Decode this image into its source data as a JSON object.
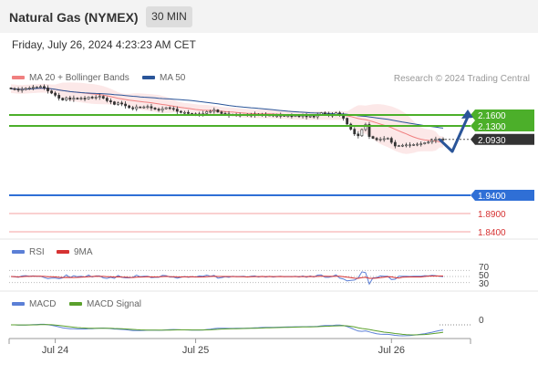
{
  "header": {
    "title": "Natural Gas (NYMEX)",
    "timeframe": "30 MIN"
  },
  "datetime": "Friday, July 26, 2024 4:23:23 AM CET",
  "credit": "Research © 2024 Trading Central",
  "colors": {
    "ma20": "#f08080",
    "ma50": "#2a5599",
    "resistance": "#4caf2a",
    "support": "#2f6fd6",
    "support_minor": "#f4a0a0",
    "arrow": "#2a5599",
    "rsi": "#5b7fd6",
    "rsi_ma": "#d63232",
    "macd": "#5b7fd6",
    "macd_signal": "#5aa02c",
    "price_tag": "#333333"
  },
  "chart_data": [
    {
      "type": "candlestick",
      "legend": [
        {
          "name": "MA 20 + Bollinger Bands",
          "color": "#f08080"
        },
        {
          "name": "MA 50",
          "color": "#2a5599"
        }
      ],
      "x_tick_labels": [
        "Jul 24",
        "Jul 25",
        "Jul 26"
      ],
      "ylim": [
        1.82,
        2.26
      ],
      "levels": [
        {
          "value": 2.16,
          "label": "2.1600",
          "kind": "resistance"
        },
        {
          "value": 2.13,
          "label": "2.1300",
          "kind": "resistance"
        },
        {
          "value": 2.093,
          "label": "2.0930",
          "kind": "last-price"
        },
        {
          "value": 1.94,
          "label": "1.9400",
          "kind": "pivot"
        },
        {
          "value": 1.89,
          "label": "1.8900",
          "kind": "support"
        },
        {
          "value": 1.84,
          "label": "1.8400",
          "kind": "support"
        }
      ],
      "close": [
        2.232,
        2.231,
        2.228,
        2.23,
        2.233,
        2.234,
        2.236,
        2.237,
        2.238,
        2.234,
        2.226,
        2.22,
        2.214,
        2.206,
        2.201,
        2.207,
        2.203,
        2.206,
        2.205,
        2.206,
        2.204,
        2.209,
        2.207,
        2.209,
        2.211,
        2.206,
        2.199,
        2.196,
        2.189,
        2.193,
        2.19,
        2.185,
        2.18,
        2.177,
        2.182,
        2.181,
        2.182,
        2.183,
        2.179,
        2.176,
        2.173,
        2.177,
        2.18,
        2.178,
        2.176,
        2.17,
        2.167,
        2.167,
        2.164,
        2.163,
        2.161,
        2.163,
        2.164,
        2.169,
        2.17,
        2.174,
        2.168,
        2.164,
        2.163,
        2.16,
        2.161,
        2.16,
        2.16,
        2.161,
        2.159,
        2.16,
        2.162,
        2.16,
        2.161,
        2.159,
        2.16,
        2.158,
        2.158,
        2.159,
        2.158,
        2.158,
        2.157,
        2.158,
        2.156,
        2.158,
        2.155,
        2.157,
        2.155,
        2.16,
        2.166,
        2.163,
        2.16,
        2.16,
        2.166,
        2.16,
        2.151,
        2.135,
        2.121,
        2.108,
        2.103,
        2.12,
        2.134,
        2.101,
        2.096,
        2.092,
        2.094,
        2.095,
        2.096,
        2.085,
        2.075,
        2.076,
        2.077,
        2.078,
        2.078,
        2.079,
        2.08,
        2.081,
        2.084,
        2.086,
        2.09,
        2.093,
        2.094,
        2.093
      ],
      "rsi_scale": [
        70,
        50,
        30
      ],
      "macd_zero": "0",
      "subpanels": [
        {
          "name": "RSI",
          "series": [
            {
              "name": "RSI"
            },
            {
              "name": "9MA"
            }
          ]
        },
        {
          "name": "MACD",
          "series": [
            {
              "name": "MACD"
            },
            {
              "name": "MACD Signal"
            }
          ]
        }
      ]
    }
  ]
}
